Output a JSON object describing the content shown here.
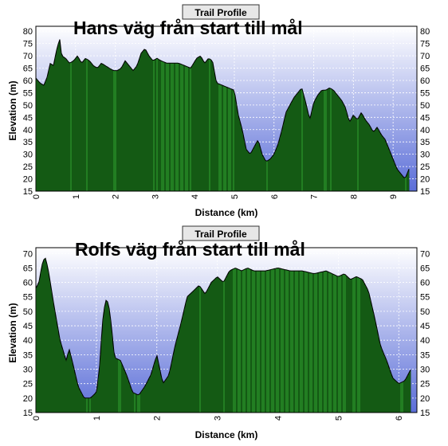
{
  "app_title": "Trail Profile",
  "colors": {
    "plot_gradient_top": "#ffffff",
    "plot_gradient_bottom": "#5b6ed8",
    "fill_green": "#1f7a1f",
    "fill_dark": "#062a06",
    "grid": "#ffffff"
  },
  "chart_data": [
    {
      "type": "area",
      "ribbon": "Trail Profile",
      "title": "Hans väg från start till mål",
      "xlabel": "Distance (km)",
      "ylabel": "Elevation (m)",
      "xlim": [
        0,
        9.6
      ],
      "ylim": [
        15,
        82
      ],
      "x_ticks": [
        "0",
        "1",
        "2",
        "3",
        "4",
        "5",
        "6",
        "7",
        "8",
        "9"
      ],
      "y_ticks": [
        "15",
        "20",
        "25",
        "30",
        "35",
        "40",
        "45",
        "50",
        "55",
        "60",
        "65",
        "70",
        "75",
        "80"
      ],
      "grid": true,
      "series": [
        {
          "x": [
            0,
            0.1,
            0.2,
            0.3,
            0.35,
            0.45,
            0.5,
            0.6,
            0.65,
            0.75,
            0.85,
            0.95,
            1.05,
            1.15,
            1.25,
            1.35,
            1.45,
            1.55,
            1.65,
            1.75,
            1.85,
            1.95,
            2.05,
            2.15,
            2.25,
            2.35,
            2.45,
            2.55,
            2.65,
            2.75,
            2.85,
            2.95,
            3.05,
            3.15,
            3.3,
            3.45,
            3.6,
            3.75,
            3.9,
            4.05,
            4.15,
            4.25,
            4.35,
            4.45,
            4.55,
            4.7,
            4.85,
            5.0,
            5.1,
            5.2,
            5.3,
            5.4,
            5.5,
            5.6,
            5.7,
            5.8,
            5.9,
            6.0,
            6.1,
            6.2,
            6.3,
            6.4,
            6.5,
            6.6,
            6.7,
            6.8,
            6.9,
            7.0,
            7.1,
            7.2,
            7.3,
            7.4,
            7.5,
            7.6,
            7.7,
            7.8,
            7.9,
            8.0,
            8.1,
            8.2,
            8.3,
            8.4,
            8.5,
            8.6,
            8.7,
            8.8,
            8.9,
            9.0,
            9.1,
            9.2,
            9.3,
            9.4
          ],
          "values": [
            61,
            59,
            58,
            62,
            67,
            66,
            71,
            77,
            70,
            69,
            67,
            68,
            70,
            67,
            69,
            68,
            66,
            65,
            67,
            66,
            65,
            64,
            64,
            65,
            68,
            66,
            64,
            66,
            71,
            73,
            70,
            68,
            69,
            68,
            67,
            67,
            67,
            66,
            65,
            69,
            70,
            67,
            69,
            68,
            59,
            58,
            57,
            56,
            46,
            40,
            32,
            30,
            33,
            36,
            30,
            27,
            28,
            30,
            34,
            40,
            47,
            50,
            53,
            55,
            57,
            51,
            44,
            51,
            54,
            56,
            56,
            57,
            56,
            54,
            52,
            49,
            43,
            46,
            44,
            47,
            44,
            42,
            39,
            41,
            38,
            36,
            32,
            28,
            24,
            22,
            20,
            24
          ]
        }
      ]
    },
    {
      "type": "area",
      "ribbon": "Trail Profile",
      "title": "Rolfs väg från start till mål",
      "xlabel": "Distance (km)",
      "ylabel": "Elevation (m)",
      "xlim": [
        0,
        6.3
      ],
      "ylim": [
        15,
        72
      ],
      "x_ticks": [
        "0",
        "1",
        "2",
        "3",
        "4",
        "5",
        "6"
      ],
      "y_ticks": [
        "15",
        "20",
        "25",
        "30",
        "35",
        "40",
        "45",
        "50",
        "55",
        "60",
        "65",
        "70"
      ],
      "grid": true,
      "series": [
        {
          "x": [
            0,
            0.05,
            0.1,
            0.15,
            0.2,
            0.3,
            0.4,
            0.5,
            0.55,
            0.6,
            0.7,
            0.8,
            0.9,
            1.0,
            1.05,
            1.1,
            1.15,
            1.2,
            1.25,
            1.3,
            1.4,
            1.5,
            1.6,
            1.7,
            1.8,
            1.9,
            2.0,
            2.1,
            2.2,
            2.3,
            2.4,
            2.5,
            2.6,
            2.7,
            2.8,
            2.9,
            3.0,
            3.1,
            3.2,
            3.3,
            3.4,
            3.5,
            3.6,
            3.8,
            4.0,
            4.2,
            4.4,
            4.6,
            4.8,
            5.0,
            5.1,
            5.2,
            5.3,
            5.4,
            5.5,
            5.6,
            5.7,
            5.8,
            5.9,
            6.0,
            6.1,
            6.2
          ],
          "values": [
            58,
            60,
            66,
            69,
            65,
            52,
            40,
            33,
            37,
            33,
            24,
            20,
            20,
            22,
            30,
            46,
            54,
            53,
            45,
            34,
            33,
            28,
            22,
            21,
            24,
            28,
            35,
            25,
            28,
            38,
            46,
            55,
            57,
            59,
            56,
            60,
            62,
            60,
            64,
            65,
            64,
            65,
            64,
            64,
            65,
            64,
            64,
            63,
            64,
            62,
            63,
            61,
            62,
            61,
            57,
            48,
            38,
            33,
            27,
            25,
            26,
            30
          ]
        }
      ]
    }
  ]
}
